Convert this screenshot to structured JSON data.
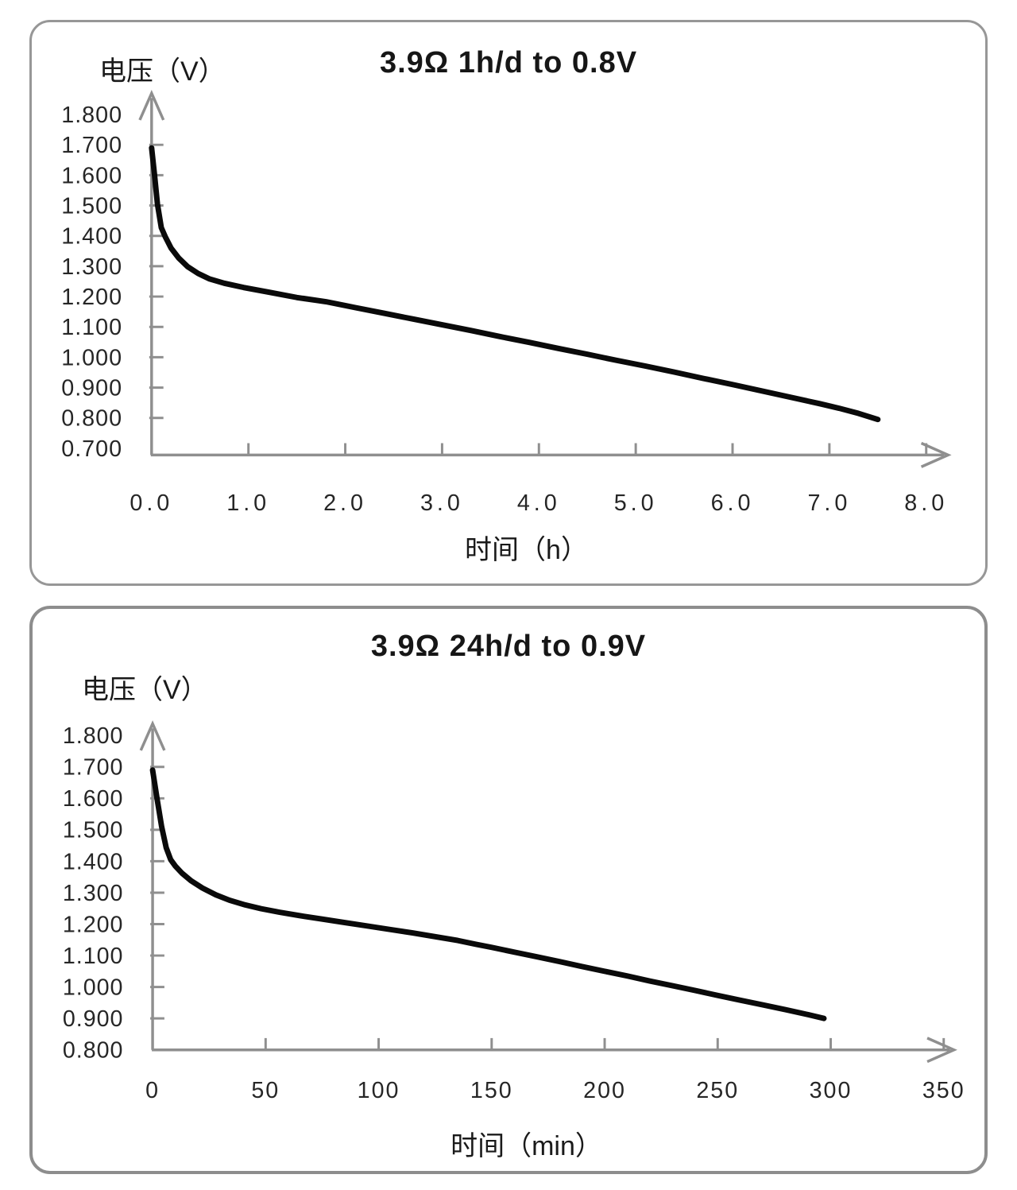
{
  "figure": {
    "background_color": "#ffffff",
    "panel_border_color": "#979797",
    "curve_color": "#0a0a0a",
    "axis_color": "#8f8f8f"
  },
  "chart_data": [
    {
      "type": "line",
      "title": "3.9Ω 1h/d to 0.8V",
      "xlabel": "时间（h）",
      "ylabel": "电压（V）",
      "xlim": [
        0,
        8.0
      ],
      "ylim": [
        0.7,
        1.8
      ],
      "grid": false,
      "legend": "none",
      "line_color": "#0a0a0a",
      "axis_color": "#8f8f8f",
      "x_tick_values": [
        0,
        1,
        2,
        3,
        4,
        5,
        6,
        7,
        8
      ],
      "x_tick_labels": [
        "0.0",
        "1.0",
        "2.0",
        "3.0",
        "4.0",
        "5.0",
        "6.0",
        "7.0",
        "8.0"
      ],
      "y_tick_values": [
        1.8,
        1.7,
        1.6,
        1.5,
        1.4,
        1.3,
        1.2,
        1.1,
        1.0,
        0.9,
        0.8,
        0.7
      ],
      "y_tick_labels": [
        "1.800",
        "1.700",
        "1.600",
        "1.500",
        "1.400",
        "1.300",
        "1.200",
        "1.100",
        "1.000",
        "0.900",
        "0.800",
        "0.700"
      ],
      "series": [
        {
          "points": [
            [
              0,
              1.69
            ],
            [
              0.03,
              1.601
            ],
            [
              0.06,
              1.505
            ],
            [
              0.1,
              1.427
            ],
            [
              0.14,
              1.398
            ],
            [
              0.2,
              1.36
            ],
            [
              0.28,
              1.327
            ],
            [
              0.37,
              1.299
            ],
            [
              0.48,
              1.276
            ],
            [
              0.6,
              1.258
            ],
            [
              0.75,
              1.244
            ],
            [
              0.95,
              1.23
            ],
            [
              1.2,
              1.215
            ],
            [
              1.5,
              1.197
            ],
            [
              1.8,
              1.183
            ],
            [
              2.1,
              1.164
            ],
            [
              2.4,
              1.145
            ],
            [
              2.7,
              1.126
            ],
            [
              3.0,
              1.107
            ],
            [
              3.3,
              1.088
            ],
            [
              3.6,
              1.068
            ],
            [
              3.9,
              1.049
            ],
            [
              4.2,
              1.029
            ],
            [
              4.5,
              1.01
            ],
            [
              4.8,
              0.99
            ],
            [
              5.1,
              0.971
            ],
            [
              5.4,
              0.951
            ],
            [
              5.7,
              0.93
            ],
            [
              6.0,
              0.91
            ],
            [
              6.3,
              0.889
            ],
            [
              6.6,
              0.868
            ],
            [
              6.9,
              0.847
            ],
            [
              7.1,
              0.832
            ],
            [
              7.3,
              0.815
            ],
            [
              7.5,
              0.795
            ]
          ]
        }
      ]
    },
    {
      "type": "line",
      "title": "3.9Ω 24h/d to 0.9V",
      "xlabel": "时间（min）",
      "ylabel": "电压（V）",
      "xlim": [
        0,
        350
      ],
      "ylim": [
        0.8,
        1.8
      ],
      "grid": false,
      "legend": "none",
      "line_color": "#0a0a0a",
      "axis_color": "#8f8f8f",
      "x_tick_values": [
        0,
        50,
        100,
        150,
        200,
        250,
        300,
        350
      ],
      "x_tick_labels": [
        "0",
        "50",
        "100",
        "150",
        "200",
        "250",
        "300",
        "350"
      ],
      "y_tick_values": [
        1.8,
        1.7,
        1.6,
        1.5,
        1.4,
        1.3,
        1.2,
        1.1,
        1.0,
        0.9,
        0.8
      ],
      "y_tick_labels": [
        "1.800",
        "1.700",
        "1.600",
        "1.500",
        "1.400",
        "1.300",
        "1.200",
        "1.100",
        "1.000",
        "0.900",
        "0.800"
      ],
      "series": [
        {
          "points": [
            [
              0,
              1.69
            ],
            [
              2,
              1.597
            ],
            [
              4,
              1.51
            ],
            [
              6,
              1.443
            ],
            [
              8,
              1.405
            ],
            [
              10,
              1.385
            ],
            [
              13,
              1.362
            ],
            [
              17,
              1.338
            ],
            [
              22,
              1.315
            ],
            [
              28,
              1.293
            ],
            [
              34,
              1.276
            ],
            [
              41,
              1.261
            ],
            [
              48,
              1.249
            ],
            [
              56,
              1.238
            ],
            [
              65,
              1.227
            ],
            [
              75,
              1.216
            ],
            [
              85,
              1.205
            ],
            [
              95,
              1.194
            ],
            [
              105,
              1.183
            ],
            [
              115,
              1.172
            ],
            [
              125,
              1.16
            ],
            [
              135,
              1.148
            ],
            [
              143,
              1.136
            ],
            [
              150,
              1.126
            ],
            [
              160,
              1.111
            ],
            [
              170,
              1.096
            ],
            [
              180,
              1.081
            ],
            [
              190,
              1.065
            ],
            [
              200,
              1.05
            ],
            [
              210,
              1.035
            ],
            [
              220,
              1.019
            ],
            [
              230,
              1.004
            ],
            [
              240,
              0.989
            ],
            [
              250,
              0.973
            ],
            [
              260,
              0.958
            ],
            [
              270,
              0.943
            ],
            [
              280,
              0.928
            ],
            [
              290,
              0.912
            ],
            [
              297,
              0.9
            ]
          ]
        }
      ]
    }
  ]
}
